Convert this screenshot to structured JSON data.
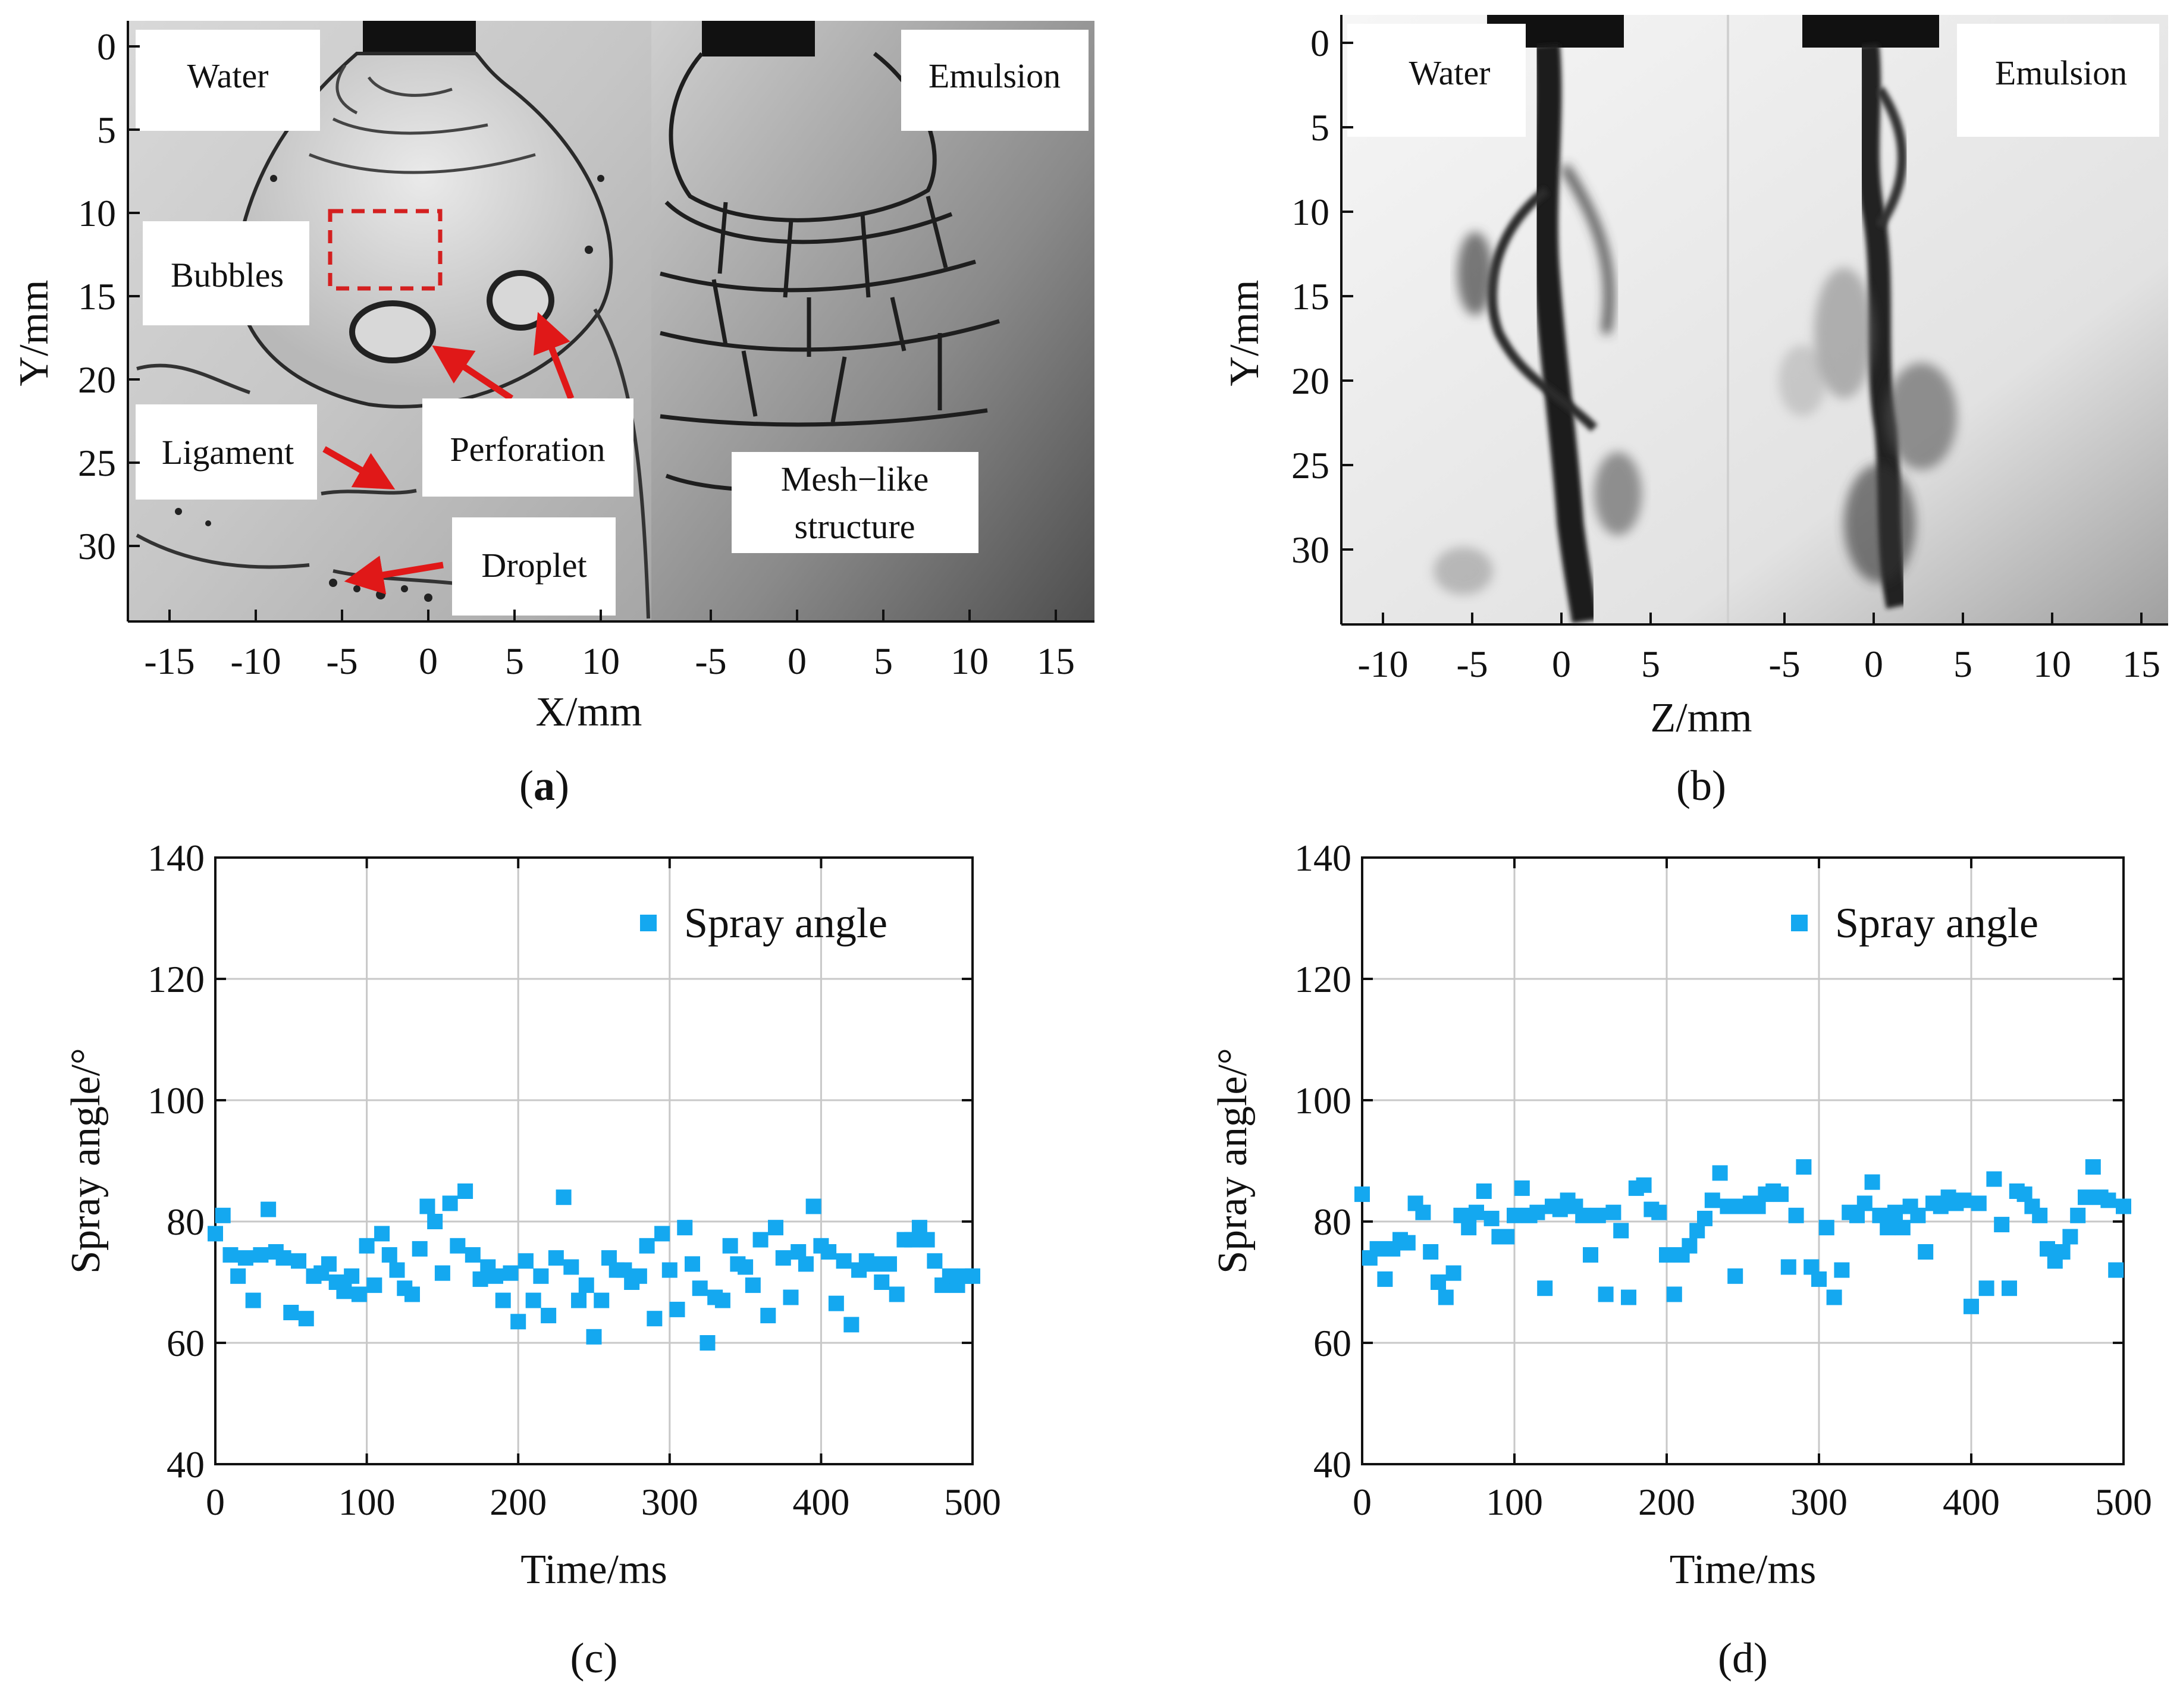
{
  "panel_a": {
    "label": "(a)",
    "sublabel_letter": "a",
    "xlabel": "X/mm",
    "ylabel": "Y/mm",
    "y_ticks": [
      "0",
      "5",
      "10",
      "15",
      "20",
      "25",
      "30"
    ],
    "x_ticks_left": [
      "-15",
      "-10",
      "-5",
      "0",
      "5",
      "10"
    ],
    "x_ticks_right": [
      "-5",
      "0",
      "5",
      "10",
      "15"
    ],
    "annotations": {
      "water": "Water",
      "emulsion": "Emulsion",
      "bubbles": "Bubbles",
      "ligament": "Ligament",
      "perforation": "Perforation",
      "droplet": "Droplet",
      "mesh_line1": "Mesh−like",
      "mesh_line2": "structure"
    }
  },
  "panel_b": {
    "label": "(b)",
    "xlabel": "Z/mm",
    "ylabel": "Y/mm",
    "y_ticks": [
      "0",
      "5",
      "10",
      "15",
      "20",
      "25",
      "30"
    ],
    "x_ticks_left": [
      "-10",
      "-5",
      "0",
      "5"
    ],
    "x_ticks_right": [
      "-5",
      "0",
      "5",
      "10",
      "15"
    ],
    "annotations": {
      "water": "Water",
      "emulsion": "Emulsion"
    }
  },
  "colors": {
    "marker": "#14a8f0",
    "arrow": "#e01818",
    "bubble_box": "#d42020"
  },
  "chart_data": [
    {
      "id": "c",
      "type": "scatter",
      "label": "(c)",
      "xlabel": "Time/ms",
      "ylabel": "Spray angle/°",
      "xlim": [
        0,
        500
      ],
      "ylim": [
        40,
        140
      ],
      "xticks": [
        0,
        100,
        200,
        300,
        400,
        500
      ],
      "yticks": [
        40,
        60,
        80,
        100,
        120,
        140
      ],
      "grid": true,
      "legend": "Spray angle",
      "legend_position": "top-right",
      "series": [
        {
          "name": "Spray angle",
          "x": [
            0,
            5,
            10,
            15,
            20,
            25,
            30,
            35,
            40,
            45,
            50,
            55,
            60,
            65,
            70,
            75,
            80,
            85,
            90,
            95,
            100,
            105,
            110,
            115,
            120,
            125,
            130,
            135,
            140,
            145,
            150,
            155,
            160,
            165,
            170,
            175,
            180,
            185,
            190,
            195,
            200,
            205,
            210,
            215,
            220,
            225,
            230,
            235,
            240,
            245,
            250,
            255,
            260,
            265,
            270,
            275,
            280,
            285,
            290,
            295,
            300,
            305,
            310,
            315,
            320,
            325,
            330,
            335,
            340,
            345,
            350,
            355,
            360,
            365,
            370,
            375,
            380,
            385,
            390,
            395,
            400,
            405,
            410,
            415,
            420,
            425,
            430,
            435,
            440,
            445,
            450,
            455,
            460,
            465,
            470,
            475,
            480,
            485,
            490,
            495,
            500
          ],
          "y": [
            78,
            81,
            74.5,
            71,
            74,
            67,
            74.5,
            82,
            75,
            74,
            65,
            73.5,
            64,
            71,
            71.5,
            73,
            70,
            68.5,
            71,
            68,
            76,
            69.5,
            78,
            74.5,
            72,
            69,
            68,
            75.5,
            82.5,
            80,
            71.5,
            83,
            76,
            85,
            74.5,
            70.5,
            72.5,
            71,
            67,
            71.5,
            63.5,
            73.5,
            67,
            71,
            64.5,
            74,
            84,
            72.5,
            67,
            69.5,
            61,
            67,
            74,
            72,
            72,
            70,
            71,
            76,
            64,
            78,
            72,
            65.5,
            79,
            73,
            69,
            60,
            67.5,
            67,
            76,
            73,
            72.5,
            69.5,
            77,
            64.5,
            79,
            74,
            67.5,
            75,
            73,
            82.5,
            76,
            75,
            66.5,
            73.5,
            63,
            72,
            73.5,
            73,
            70,
            73,
            68,
            77,
            77,
            79,
            77,
            73.5,
            69.5,
            71,
            69.5,
            71,
            71
          ]
        }
      ]
    },
    {
      "id": "d",
      "type": "scatter",
      "label": "(d)",
      "xlabel": "Time/ms",
      "ylabel": "Spray angle/°",
      "xlim": [
        0,
        500
      ],
      "ylim": [
        40,
        140
      ],
      "xticks": [
        0,
        100,
        200,
        300,
        400,
        500
      ],
      "yticks": [
        40,
        60,
        80,
        100,
        120,
        140
      ],
      "grid": true,
      "legend": "Spray angle",
      "legend_position": "top-right",
      "series": [
        {
          "name": "Spray angle",
          "x": [
            0,
            5,
            10,
            15,
            20,
            25,
            30,
            35,
            40,
            45,
            50,
            55,
            60,
            65,
            70,
            75,
            80,
            85,
            90,
            95,
            100,
            105,
            110,
            115,
            120,
            125,
            130,
            135,
            140,
            145,
            150,
            155,
            160,
            165,
            170,
            175,
            180,
            185,
            190,
            195,
            200,
            205,
            210,
            215,
            220,
            225,
            230,
            235,
            240,
            245,
            250,
            255,
            260,
            265,
            270,
            275,
            280,
            285,
            290,
            295,
            300,
            305,
            310,
            315,
            320,
            325,
            330,
            335,
            340,
            345,
            350,
            355,
            360,
            365,
            370,
            375,
            380,
            385,
            390,
            395,
            400,
            405,
            410,
            415,
            420,
            425,
            430,
            435,
            440,
            445,
            450,
            455,
            460,
            465,
            470,
            475,
            480,
            485,
            490,
            495,
            500
          ],
          "y": [
            84.5,
            74,
            75.5,
            70.5,
            75.5,
            77,
            76.5,
            83,
            81.5,
            75,
            70,
            67.5,
            71.5,
            81,
            79,
            81.5,
            85,
            80.5,
            77.5,
            77.5,
            81,
            85.5,
            81,
            81.5,
            69,
            82.5,
            82,
            83.5,
            82.5,
            81,
            74.5,
            81,
            68,
            81.5,
            78.5,
            67.5,
            85.5,
            86,
            82,
            81.5,
            74.5,
            68,
            74.5,
            76,
            78.5,
            80.5,
            83.5,
            88,
            82.5,
            71,
            82.5,
            83,
            82.5,
            84.5,
            85,
            84.5,
            72.5,
            81,
            89,
            72.5,
            70.5,
            79,
            67.5,
            72,
            81.5,
            81,
            83,
            86.5,
            81,
            79,
            81.5,
            79,
            82.5,
            81,
            75,
            83,
            82.5,
            84,
            83,
            83.5,
            66,
            83,
            69,
            87,
            79.5,
            69,
            85,
            84.5,
            82.5,
            81,
            75.5,
            73.5,
            75,
            77.5,
            81,
            84,
            89,
            84,
            83.5,
            72,
            82.5
          ]
        }
      ]
    }
  ]
}
